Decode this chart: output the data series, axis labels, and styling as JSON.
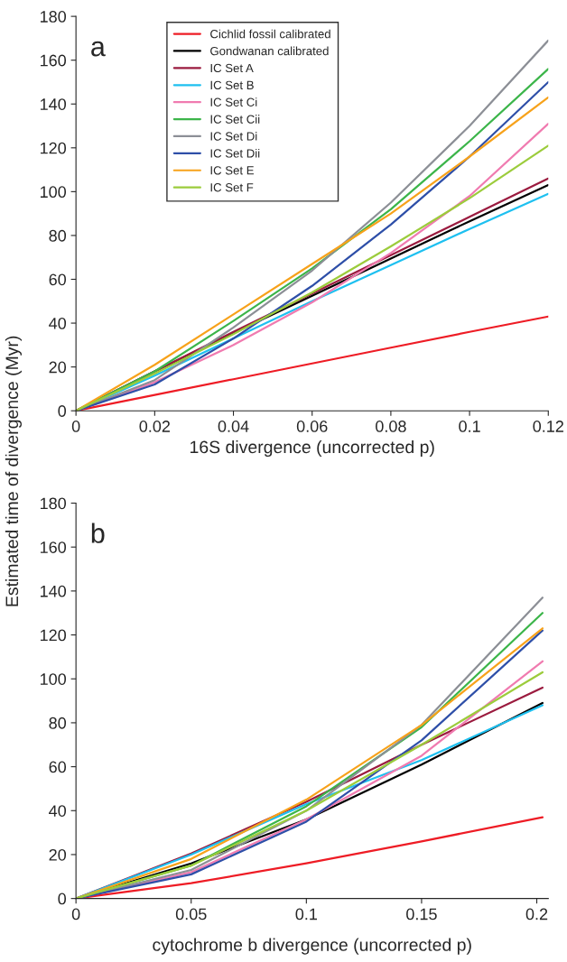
{
  "chart_data": [
    {
      "type": "line",
      "xlabel": "16S divergence (uncorrected p)",
      "ylabel": "Estimated time of divergence (Myr)",
      "annotations": [
        "a"
      ],
      "xlim": [
        0,
        0.12
      ],
      "ylim": [
        0,
        180
      ],
      "xticks": [
        0,
        0.02,
        0.04,
        0.06,
        0.08,
        0.1,
        0.12
      ],
      "yticks": [
        0,
        20,
        40,
        60,
        80,
        100,
        120,
        140,
        160,
        180
      ],
      "grid": false,
      "legend": "top left",
      "marker": "none",
      "line_style": "solid",
      "x": [
        0,
        0.02,
        0.04,
        0.06,
        0.08,
        0.1,
        0.12
      ],
      "series": [
        {
          "name": "Cichlid fossil calibrated",
          "color": "#ee1c25",
          "values": [
            0,
            7.2,
            14.4,
            21.6,
            28.8,
            36,
            43
          ]
        },
        {
          "name": "Gondwanan calibrated",
          "color": "#000000",
          "values": [
            0,
            18,
            35.5,
            52.5,
            69.5,
            86.5,
            103
          ]
        },
        {
          "name": "IC Set A",
          "color": "#9b1b3f",
          "values": [
            0,
            18,
            36,
            53.5,
            71,
            88.5,
            106
          ]
        },
        {
          "name": "IC Set B",
          "color": "#1ec0f0",
          "values": [
            0,
            16,
            33,
            50,
            66.5,
            83,
            99
          ]
        },
        {
          "name": "IC Set Ci",
          "color": "#f07bb0",
          "values": [
            0,
            13,
            30,
            49.5,
            72,
            98,
            131
          ]
        },
        {
          "name": "IC Set Cii",
          "color": "#3cb54a",
          "values": [
            0,
            18,
            41,
            65,
            92,
            123,
            156
          ]
        },
        {
          "name": "IC Set Di",
          "color": "#8c8f96",
          "values": [
            0,
            14,
            38,
            64,
            95,
            130,
            169
          ]
        },
        {
          "name": "IC Set Dii",
          "color": "#2e4fa8",
          "values": [
            0,
            12,
            33,
            57,
            85,
            116,
            150
          ]
        },
        {
          "name": "IC Set E",
          "color": "#f7a21b",
          "values": [
            0,
            21,
            44,
            67,
            90,
            116,
            143
          ]
        },
        {
          "name": "IC Set F",
          "color": "#9ccc3c",
          "values": [
            0,
            17,
            35,
            54,
            75,
            97,
            121
          ]
        }
      ]
    },
    {
      "type": "line",
      "xlabel": "cytochrome b divergence (uncorrected p)",
      "annotations": [
        "b"
      ],
      "xlim": [
        0,
        0.205
      ],
      "ylim": [
        0,
        180
      ],
      "xticks": [
        0,
        0.05,
        0.1,
        0.15,
        0.2
      ],
      "yticks": [
        0,
        20,
        40,
        60,
        80,
        100,
        120,
        140,
        160,
        180
      ],
      "grid": false,
      "legend": false,
      "marker": "none",
      "line_style": "solid",
      "x": [
        0,
        0.05,
        0.1,
        0.15,
        0.2025
      ],
      "series": [
        {
          "color": "#ee1c25",
          "values": [
            0,
            7,
            16,
            26,
            37
          ]
        },
        {
          "color": "#000000",
          "values": [
            0,
            16,
            36,
            61,
            89
          ]
        },
        {
          "color": "#9b1b3f",
          "values": [
            0,
            20.5,
            44,
            70,
            96
          ]
        },
        {
          "color": "#1ec0f0",
          "values": [
            0,
            20,
            43,
            63,
            88
          ]
        },
        {
          "color": "#f07bb0",
          "values": [
            0,
            12,
            36,
            65,
            108
          ]
        },
        {
          "color": "#3cb54a",
          "values": [
            0,
            15,
            42,
            78,
            130
          ]
        },
        {
          "color": "#8c8f96",
          "values": [
            0,
            13,
            40,
            79,
            137
          ]
        },
        {
          "color": "#2e4fa8",
          "values": [
            0,
            11,
            35,
            72,
            122
          ]
        },
        {
          "color": "#f7a21b",
          "values": [
            0,
            18,
            45,
            79,
            123
          ]
        },
        {
          "color": "#9ccc3c",
          "values": [
            0,
            15,
            40,
            70,
            103
          ]
        }
      ]
    }
  ]
}
